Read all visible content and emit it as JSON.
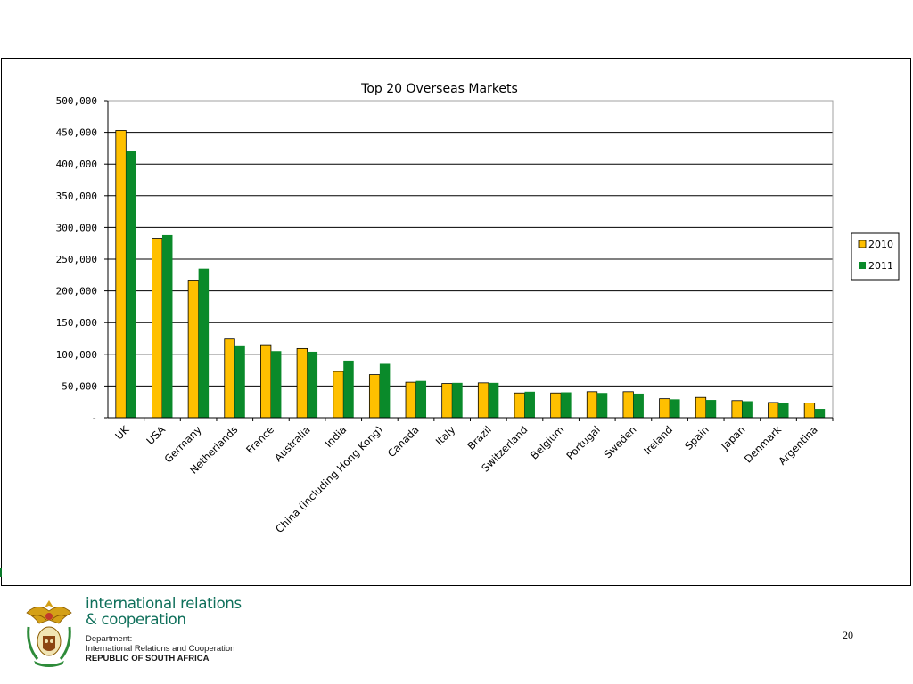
{
  "chart_data": {
    "type": "bar",
    "title": "Top 20 Overseas Markets",
    "xlabel": "",
    "ylabel": "",
    "ylim": [
      0,
      500000
    ],
    "yticks": [
      {
        "value": 0,
        "label": "-"
      },
      {
        "value": 50000,
        "label": "50,000"
      },
      {
        "value": 100000,
        "label": "100,000"
      },
      {
        "value": 150000,
        "label": "150,000"
      },
      {
        "value": 200000,
        "label": "200,000"
      },
      {
        "value": 250000,
        "label": "250,000"
      },
      {
        "value": 300000,
        "label": "300,000"
      },
      {
        "value": 350000,
        "label": "350,000"
      },
      {
        "value": 400000,
        "label": "400,000"
      },
      {
        "value": 450000,
        "label": "450,000"
      },
      {
        "value": 500000,
        "label": "500,000"
      }
    ],
    "grid": true,
    "legend_position": "right",
    "categories": [
      "UK",
      "USA",
      "Germany",
      "Netherlands",
      "France",
      "Australia",
      "India",
      "China (including  Hong Kong)",
      "Canada",
      "Italy",
      "Brazil",
      "Switzerland",
      "Belgium",
      "Portugal",
      "Sweden",
      "Ireland",
      "Spain",
      "Japan",
      "Denmark",
      "Argentina"
    ],
    "series": [
      {
        "name": "2010",
        "color": "#ffc000",
        "values": [
          453000,
          283000,
          217000,
          124000,
          115000,
          109000,
          73000,
          68000,
          56000,
          54000,
          55000,
          39000,
          39000,
          41000,
          41000,
          30000,
          32000,
          27000,
          24000,
          23000
        ]
      },
      {
        "name": "2011",
        "color": "#0a8a2a",
        "values": [
          420000,
          288000,
          235000,
          114000,
          105000,
          104000,
          90000,
          85000,
          58000,
          55000,
          55000,
          41000,
          40000,
          39000,
          38000,
          29000,
          28000,
          26000,
          23000,
          14000
        ]
      }
    ]
  },
  "footer": {
    "brand_line_1": "international relations",
    "brand_line_2": "& cooperation",
    "department_label": "Department:",
    "department_name": "International Relations and Cooperation",
    "country": "REPUBLIC OF SOUTH AFRICA",
    "page_number": "20",
    "brand_color": "#0e6f5a"
  }
}
